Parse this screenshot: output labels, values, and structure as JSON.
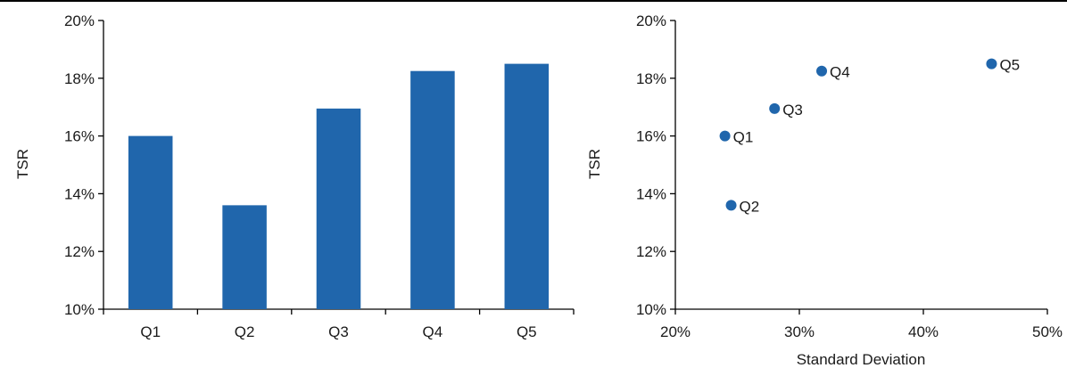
{
  "colors": {
    "bar": "#2066AC",
    "point": "#2066AC",
    "axis": "#000000"
  },
  "chart_data": [
    {
      "type": "bar",
      "categories": [
        "Q1",
        "Q2",
        "Q3",
        "Q4",
        "Q5"
      ],
      "values": [
        16.0,
        13.6,
        16.95,
        18.25,
        18.5
      ],
      "ylabel": "TSR",
      "xlabel": "",
      "ylim": [
        10,
        20
      ],
      "yticks": [
        "10%",
        "12%",
        "14%",
        "16%",
        "18%",
        "20%"
      ],
      "grid": false
    },
    {
      "type": "scatter",
      "points": [
        {
          "label": "Q1",
          "x": 24.0,
          "y": 16.0
        },
        {
          "label": "Q2",
          "x": 24.5,
          "y": 13.6
        },
        {
          "label": "Q3",
          "x": 28.0,
          "y": 16.95
        },
        {
          "label": "Q4",
          "x": 31.8,
          "y": 18.25
        },
        {
          "label": "Q5",
          "x": 45.5,
          "y": 18.5
        }
      ],
      "xlabel": "Standard Deviation",
      "ylabel": "TSR",
      "xlim": [
        20,
        50
      ],
      "ylim": [
        10,
        20
      ],
      "xticks": [
        "20%",
        "30%",
        "40%",
        "50%"
      ],
      "yticks": [
        "10%",
        "12%",
        "14%",
        "16%",
        "18%",
        "20%"
      ],
      "grid": false
    }
  ]
}
